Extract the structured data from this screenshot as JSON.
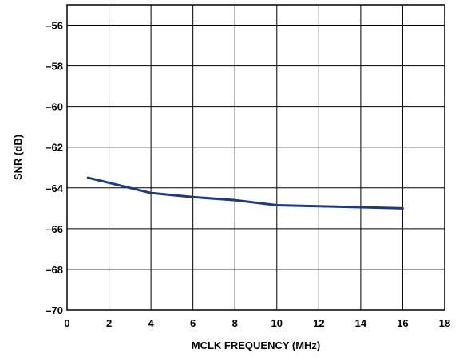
{
  "chart_data": {
    "type": "line",
    "title": "",
    "xlabel": "MCLK FREQUENCY (MHz)",
    "ylabel": "SNR (dB)",
    "xlim": [
      0,
      18
    ],
    "ylim": [
      -70,
      -55
    ],
    "x_ticks": [
      0,
      2,
      4,
      6,
      8,
      10,
      12,
      14,
      16,
      18
    ],
    "y_ticks": [
      -70,
      -68,
      -66,
      -64,
      -62,
      -60,
      -58,
      -56
    ],
    "x_tick_labels": [
      "0",
      "2",
      "4",
      "6",
      "8",
      "10",
      "12",
      "14",
      "16",
      "18"
    ],
    "y_tick_labels": [
      "–70",
      "–68",
      "–66",
      "–64",
      "–62",
      "–60",
      "–58",
      "–56"
    ],
    "grid": true,
    "series": [
      {
        "color": "#1f3a7a",
        "x": [
          1,
          2,
          3,
          4,
          5,
          6,
          8,
          10,
          12,
          14,
          16
        ],
        "y": [
          -63.5,
          -63.75,
          -64.0,
          -64.25,
          -64.35,
          -64.45,
          -64.6,
          -64.85,
          -64.9,
          -64.95,
          -65.0
        ]
      }
    ]
  }
}
